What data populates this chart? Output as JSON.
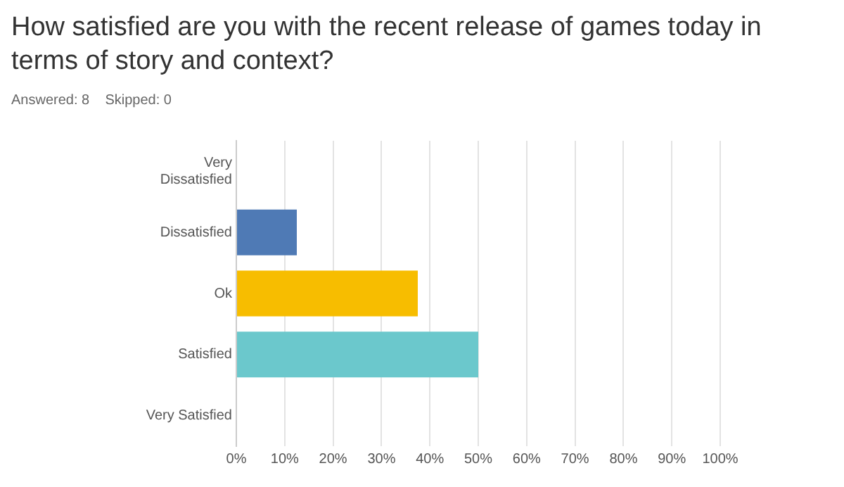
{
  "chart_data": {
    "type": "bar",
    "orientation": "horizontal",
    "title": "How satisfied are you with the recent release of games today in terms of story and context?",
    "annotations": [
      "Answered: 8    Skipped: 0"
    ],
    "categories": [
      "Very Dissatisfied",
      "Dissatisfied",
      "Ok",
      "Satisfied",
      "Very Satisfied"
    ],
    "values": [
      0,
      12.5,
      37.5,
      50,
      0
    ],
    "colors": [
      "#4f7ab5",
      "#4f7ab5",
      "#f7bd00",
      "#6bc8cc",
      "#6bc8cc"
    ],
    "xlim": [
      0,
      100
    ],
    "xticks": [
      {
        "value": 0,
        "label": "0%"
      },
      {
        "value": 10,
        "label": "10%"
      },
      {
        "value": 20,
        "label": "20%"
      },
      {
        "value": 30,
        "label": "30%"
      },
      {
        "value": 40,
        "label": "40%"
      },
      {
        "value": 50,
        "label": "50%"
      },
      {
        "value": 60,
        "label": "60%"
      },
      {
        "value": 70,
        "label": "70%"
      },
      {
        "value": 80,
        "label": "80%"
      },
      {
        "value": 90,
        "label": "90%"
      },
      {
        "value": 100,
        "label": "100%"
      }
    ],
    "grid": "x",
    "legend": false
  }
}
